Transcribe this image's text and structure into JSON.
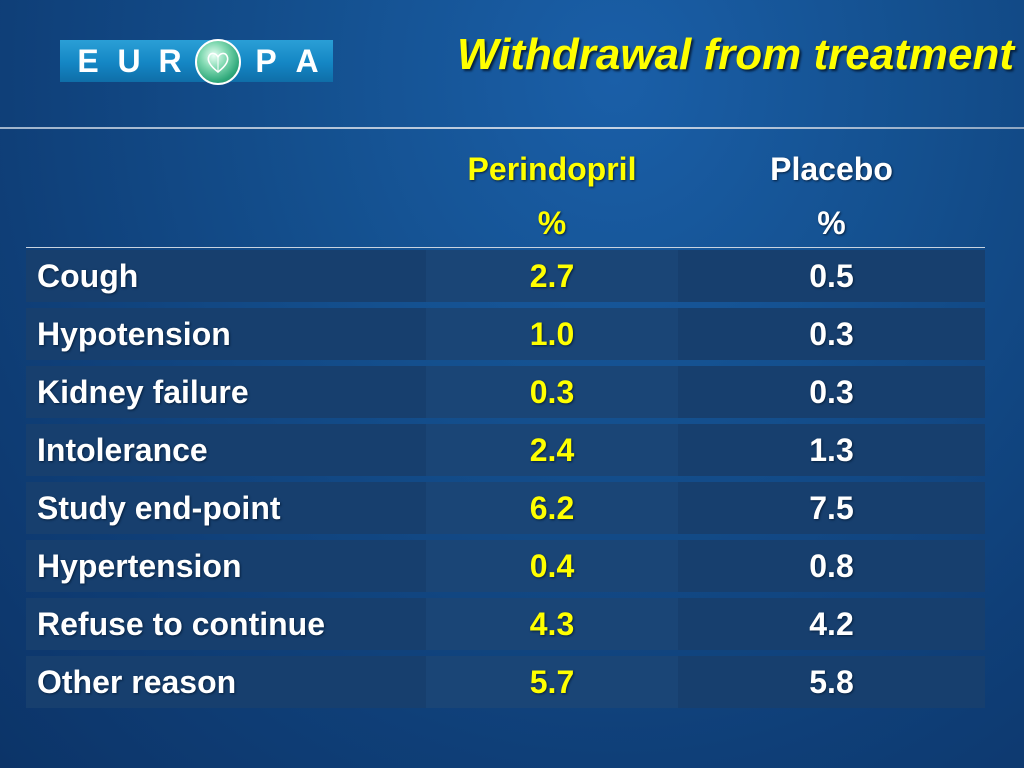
{
  "logo": {
    "letters_left": [
      "E",
      "U",
      "R"
    ],
    "letters_right": [
      "P",
      "A"
    ],
    "globe_icon": "heart-globe-icon"
  },
  "title": "Withdrawal from treatment",
  "table": {
    "columns": [
      {
        "name": "Perindopril",
        "unit": "%"
      },
      {
        "name": "Placebo",
        "unit": "%"
      }
    ],
    "rows": [
      {
        "label": "Cough",
        "perindopril": "2.7",
        "placebo": "0.5"
      },
      {
        "label": "Hypotension",
        "perindopril": "1.0",
        "placebo": "0.3"
      },
      {
        "label": "Kidney failure",
        "perindopril": "0.3",
        "placebo": "0.3"
      },
      {
        "label": "Intolerance",
        "perindopril": "2.4",
        "placebo": "1.3"
      },
      {
        "label": "Study end-point",
        "perindopril": "6.2",
        "placebo": "7.5"
      },
      {
        "label": "Hypertension",
        "perindopril": "0.4",
        "placebo": "0.8"
      },
      {
        "label": "Refuse to continue",
        "perindopril": "4.3",
        "placebo": "4.2"
      },
      {
        "label": "Other reason",
        "perindopril": "5.7",
        "placebo": "5.8"
      }
    ]
  },
  "colors": {
    "background": "#14508f",
    "title": "#ffff00",
    "accent_values": "#ffff00",
    "text": "#ffffff",
    "logo_blue": "#1486c4",
    "logo_green": "#2fa87a"
  }
}
